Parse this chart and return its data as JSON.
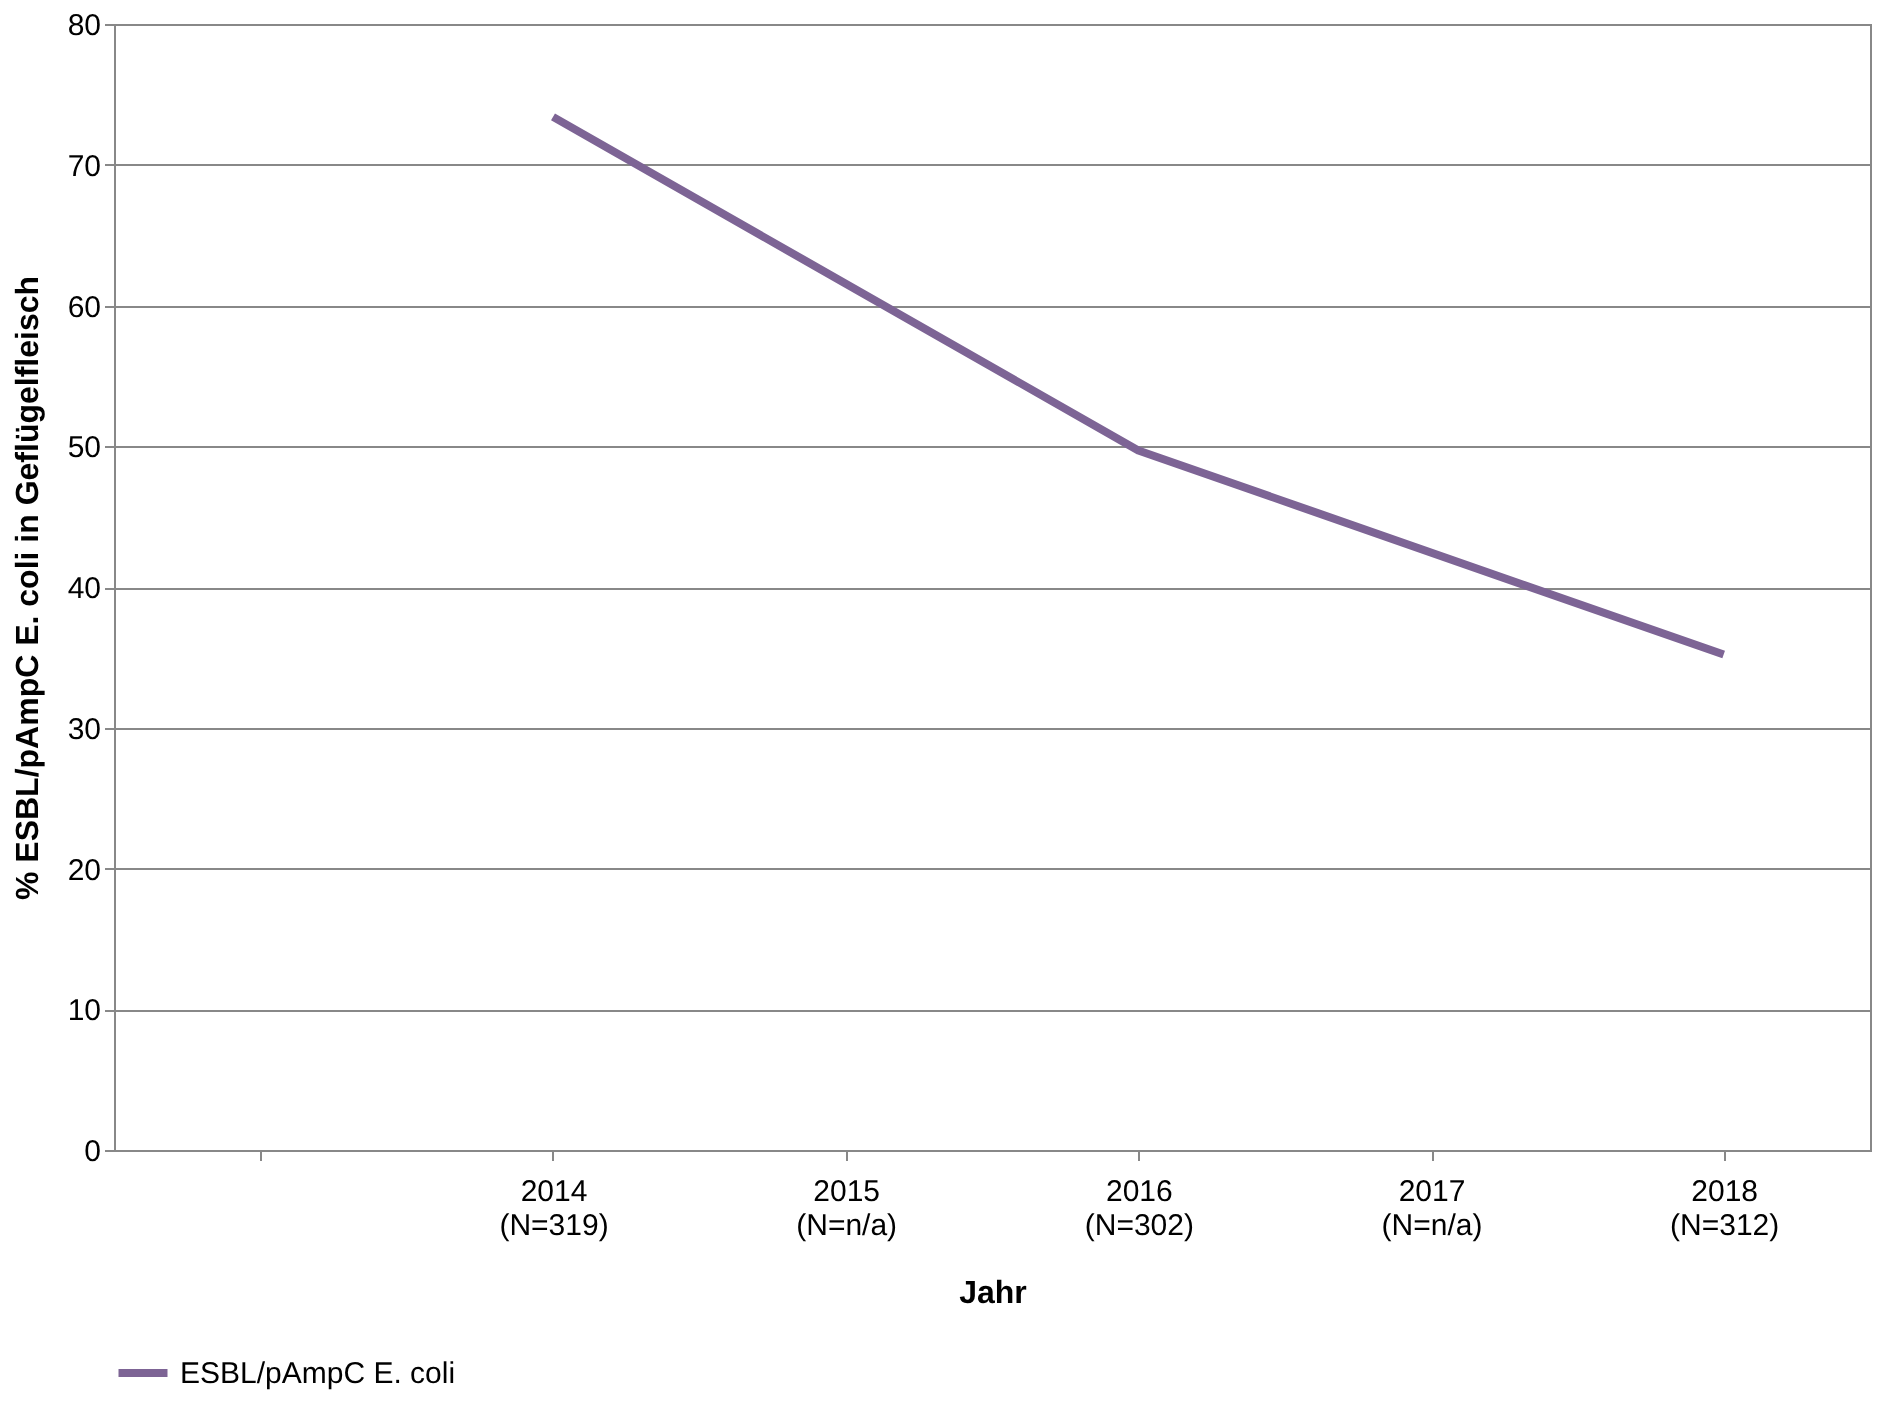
{
  "chart_data": {
    "type": "line",
    "xlabel": "Jahr",
    "ylabel": "% ESBL/pAmpC E. coli in Geflügelfleisch",
    "categories": [
      null,
      "2014\n(N=319)",
      "2015\n(N=n/a)",
      "2016\n(N=302)",
      "2017\n(N=n/a)",
      "2018\n(N=312)"
    ],
    "series": [
      {
        "name": "ESBL/pAmpC E. coli",
        "color": "#7d6495",
        "values": [
          null,
          73.4,
          null,
          49.7,
          null,
          35.2
        ]
      }
    ],
    "ylim": [
      0,
      80
    ],
    "yticks": [
      0,
      10,
      20,
      30,
      40,
      50,
      60,
      70,
      80
    ],
    "grid": "y",
    "legend": "bottom",
    "marker": "none",
    "line_style": "solid"
  }
}
